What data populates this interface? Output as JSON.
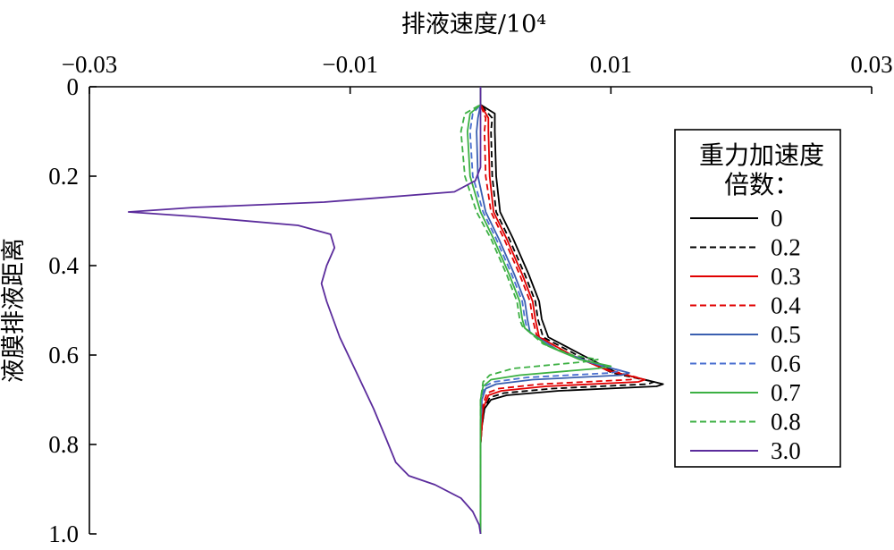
{
  "chart_data": {
    "type": "line",
    "xlabel": "排液速度/10⁴",
    "ylabel": "液膜排液距离",
    "xlim": [
      -0.03,
      0.03
    ],
    "ylim": [
      0,
      1.0
    ],
    "y_inverted": true,
    "x_axis_position": "top",
    "xticks": [
      "−0.03",
      "−0.01",
      "0.01",
      "0.03"
    ],
    "xtick_values": [
      -0.03,
      -0.01,
      0.01,
      0.03
    ],
    "yticks": [
      "0",
      "0.2",
      "0.4",
      "0.6",
      "0.8",
      "1.0"
    ],
    "ytick_values": [
      0,
      0.2,
      0.4,
      0.6,
      0.8,
      1.0
    ],
    "grid": false,
    "legend": {
      "title_lines": [
        "重力加速度",
        "倍数："
      ],
      "position": "right"
    },
    "series": [
      {
        "name": "0",
        "color": "#000000",
        "dash": "solid",
        "points": [
          [
            0,
            0
          ],
          [
            0,
            0.04
          ],
          [
            0.0011,
            0.06
          ],
          [
            0.0011,
            0.1
          ],
          [
            0.0012,
            0.2
          ],
          [
            0.0015,
            0.28
          ],
          [
            0.0025,
            0.34
          ],
          [
            0.0037,
            0.42
          ],
          [
            0.0045,
            0.48
          ],
          [
            0.0047,
            0.52
          ],
          [
            0.0052,
            0.56
          ],
          [
            0.0078,
            0.6
          ],
          [
            0.0105,
            0.64
          ],
          [
            0.014,
            0.665
          ],
          [
            0.0135,
            0.67
          ],
          [
            0.006,
            0.68
          ],
          [
            0.002,
            0.69
          ],
          [
            0.0008,
            0.7
          ],
          [
            0.0003,
            0.72
          ],
          [
            0.0001,
            0.76
          ],
          [
            0,
            0.8
          ],
          [
            0,
            1.0
          ]
        ]
      },
      {
        "name": "0.2",
        "color": "#000000",
        "dash": "dashed",
        "points": [
          [
            0,
            0
          ],
          [
            0,
            0.04
          ],
          [
            0.0009,
            0.07
          ],
          [
            0.0008,
            0.1
          ],
          [
            0.0009,
            0.2
          ],
          [
            0.0012,
            0.28
          ],
          [
            0.0022,
            0.34
          ],
          [
            0.0034,
            0.42
          ],
          [
            0.0042,
            0.48
          ],
          [
            0.0044,
            0.52
          ],
          [
            0.0048,
            0.56
          ],
          [
            0.0074,
            0.6
          ],
          [
            0.0101,
            0.64
          ],
          [
            0.0133,
            0.66
          ],
          [
            0.0128,
            0.665
          ],
          [
            0.0055,
            0.675
          ],
          [
            0.0018,
            0.685
          ],
          [
            0.0007,
            0.695
          ],
          [
            0.0003,
            0.72
          ],
          [
            0.0001,
            0.76
          ],
          [
            0,
            0.8
          ],
          [
            0,
            1.0
          ]
        ]
      },
      {
        "name": "0.3",
        "color": "#e00000",
        "dash": "solid",
        "points": [
          [
            0,
            0
          ],
          [
            0,
            0.04
          ],
          [
            0.0006,
            0.07
          ],
          [
            0.0006,
            0.1
          ],
          [
            0.0007,
            0.2
          ],
          [
            0.001,
            0.28
          ],
          [
            0.002,
            0.34
          ],
          [
            0.0032,
            0.42
          ],
          [
            0.004,
            0.48
          ],
          [
            0.0042,
            0.52
          ],
          [
            0.0045,
            0.56
          ],
          [
            0.007,
            0.6
          ],
          [
            0.0098,
            0.635
          ],
          [
            0.0126,
            0.655
          ],
          [
            0.0121,
            0.66
          ],
          [
            0.005,
            0.67
          ],
          [
            0.0016,
            0.68
          ],
          [
            0.0006,
            0.69
          ],
          [
            0.0002,
            0.72
          ],
          [
            0.0001,
            0.76
          ],
          [
            0,
            0.8
          ],
          [
            0,
            1.0
          ]
        ]
      },
      {
        "name": "0.4",
        "color": "#e00000",
        "dash": "dashed",
        "points": [
          [
            0,
            0
          ],
          [
            0,
            0.04
          ],
          [
            0.0004,
            0.07
          ],
          [
            0.0003,
            0.1
          ],
          [
            0.0004,
            0.2
          ],
          [
            0.0008,
            0.28
          ],
          [
            0.0018,
            0.34
          ],
          [
            0.003,
            0.42
          ],
          [
            0.0038,
            0.48
          ],
          [
            0.004,
            0.52
          ],
          [
            0.0043,
            0.555
          ],
          [
            0.0066,
            0.595
          ],
          [
            0.0094,
            0.63
          ],
          [
            0.012,
            0.65
          ],
          [
            0.0115,
            0.655
          ],
          [
            0.0046,
            0.665
          ],
          [
            0.0014,
            0.675
          ],
          [
            0.0005,
            0.685
          ],
          [
            0.0002,
            0.71
          ],
          [
            0.0001,
            0.76
          ],
          [
            0,
            0.8
          ],
          [
            0,
            1.0
          ]
        ]
      },
      {
        "name": "0.5",
        "color": "#3a5fb0",
        "dash": "solid",
        "points": [
          [
            0,
            0
          ],
          [
            0,
            0.04
          ],
          [
            -0.0002,
            0.07
          ],
          [
            -0.0003,
            0.1
          ],
          [
            -0.0002,
            0.2
          ],
          [
            0.0004,
            0.28
          ],
          [
            0.0014,
            0.34
          ],
          [
            0.0026,
            0.42
          ],
          [
            0.0034,
            0.48
          ],
          [
            0.0036,
            0.52
          ],
          [
            0.0038,
            0.55
          ],
          [
            0.006,
            0.59
          ],
          [
            0.0088,
            0.62
          ],
          [
            0.0114,
            0.64
          ],
          [
            0.0108,
            0.645
          ],
          [
            0.004,
            0.655
          ],
          [
            0.0012,
            0.665
          ],
          [
            0.0004,
            0.675
          ],
          [
            0.0001,
            0.7
          ],
          [
            0,
            0.76
          ],
          [
            0,
            1.0
          ]
        ]
      },
      {
        "name": "0.6",
        "color": "#4a6fd0",
        "dash": "dashed",
        "points": [
          [
            0,
            0
          ],
          [
            0,
            0.04
          ],
          [
            -0.0006,
            0.06
          ],
          [
            -0.0008,
            0.1
          ],
          [
            -0.0006,
            0.2
          ],
          [
            0.0002,
            0.28
          ],
          [
            0.0012,
            0.34
          ],
          [
            0.0024,
            0.42
          ],
          [
            0.0032,
            0.48
          ],
          [
            0.0034,
            0.52
          ],
          [
            0.0036,
            0.545
          ],
          [
            0.0056,
            0.585
          ],
          [
            0.0082,
            0.615
          ],
          [
            0.0108,
            0.635
          ],
          [
            0.01,
            0.64
          ],
          [
            0.0036,
            0.65
          ],
          [
            0.001,
            0.66
          ],
          [
            0.0003,
            0.67
          ],
          [
            0.0001,
            0.7
          ],
          [
            0,
            0.76
          ],
          [
            0,
            1.0
          ]
        ]
      },
      {
        "name": "0.7",
        "color": "#3cb043",
        "dash": "solid",
        "points": [
          [
            0,
            0
          ],
          [
            0,
            0.04
          ],
          [
            -0.0008,
            0.06
          ],
          [
            -0.001,
            0.1
          ],
          [
            -0.0008,
            0.2
          ],
          [
            0,
            0.28
          ],
          [
            0.001,
            0.34
          ],
          [
            0.0022,
            0.42
          ],
          [
            0.003,
            0.48
          ],
          [
            0.0032,
            0.52
          ],
          [
            0.0034,
            0.54
          ],
          [
            0.0052,
            0.58
          ],
          [
            0.0076,
            0.61
          ],
          [
            0.01,
            0.625
          ],
          [
            0.009,
            0.63
          ],
          [
            0.003,
            0.645
          ],
          [
            0.0008,
            0.655
          ],
          [
            0.0002,
            0.67
          ],
          [
            0,
            0.7
          ],
          [
            0,
            1.0
          ]
        ]
      },
      {
        "name": "0.8",
        "color": "#3cb043",
        "dash": "dashed",
        "points": [
          [
            0,
            0
          ],
          [
            0,
            0.04
          ],
          [
            -0.0012,
            0.06
          ],
          [
            -0.0015,
            0.1
          ],
          [
            -0.0012,
            0.2
          ],
          [
            -0.0003,
            0.28
          ],
          [
            0.0008,
            0.34
          ],
          [
            0.002,
            0.42
          ],
          [
            0.0028,
            0.48
          ],
          [
            0.003,
            0.52
          ],
          [
            0.0032,
            0.535
          ],
          [
            0.0048,
            0.575
          ],
          [
            0.007,
            0.6
          ],
          [
            0.009,
            0.61
          ],
          [
            0.008,
            0.615
          ],
          [
            0.0025,
            0.63
          ],
          [
            0.0007,
            0.645
          ],
          [
            0.0002,
            0.66
          ],
          [
            0,
            0.7
          ],
          [
            0,
            1.0
          ]
        ]
      },
      {
        "name": "3.0",
        "color": "#5b2c9c",
        "dash": "solid",
        "points": [
          [
            0,
            0
          ],
          [
            0,
            0.1
          ],
          [
            0,
            0.18
          ],
          [
            -0.0004,
            0.21
          ],
          [
            -0.002,
            0.235
          ],
          [
            -0.012,
            0.258
          ],
          [
            -0.022,
            0.27
          ],
          [
            -0.027,
            0.28
          ],
          [
            -0.022,
            0.29
          ],
          [
            -0.014,
            0.31
          ],
          [
            -0.0115,
            0.33
          ],
          [
            -0.0112,
            0.36
          ],
          [
            -0.0118,
            0.4
          ],
          [
            -0.0122,
            0.44
          ],
          [
            -0.0118,
            0.48
          ],
          [
            -0.0108,
            0.56
          ],
          [
            -0.0095,
            0.64
          ],
          [
            -0.0082,
            0.72
          ],
          [
            -0.0072,
            0.79
          ],
          [
            -0.0065,
            0.84
          ],
          [
            -0.0055,
            0.87
          ],
          [
            -0.0035,
            0.89
          ],
          [
            -0.0015,
            0.92
          ],
          [
            -0.0006,
            0.95
          ],
          [
            -0.0001,
            0.98
          ],
          [
            0,
            1.0
          ]
        ]
      }
    ]
  }
}
